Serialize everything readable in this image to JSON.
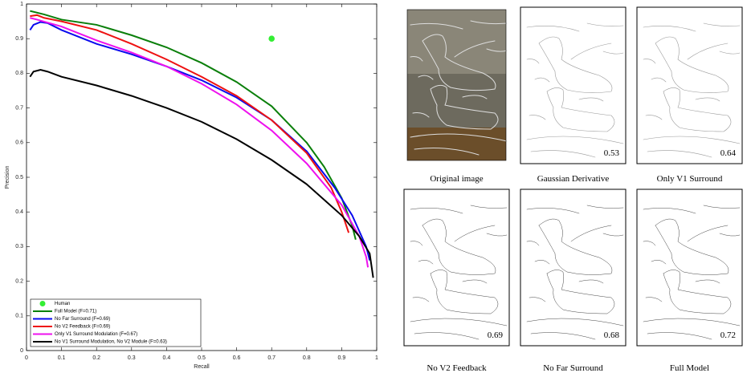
{
  "chart_data": {
    "type": "line",
    "xlabel": "Recall",
    "ylabel": "Precision",
    "xlim": [
      0,
      1
    ],
    "ylim": [
      0,
      1
    ],
    "xticks": [
      0,
      0.1,
      0.2,
      0.3,
      0.4,
      0.5,
      0.6,
      0.7,
      0.8,
      0.9,
      1
    ],
    "yticks": [
      0,
      0.1,
      0.2,
      0.3,
      0.4,
      0.5,
      0.6,
      0.7,
      0.8,
      0.9,
      1
    ],
    "legend": "lower left",
    "series": [
      {
        "name": "Human",
        "color": "#33ee33",
        "style": "marker",
        "x": [
          0.7
        ],
        "values": [
          0.9
        ]
      },
      {
        "name": "Full Model (F=0.71)",
        "color": "#0a7f0a",
        "style": "line",
        "x": [
          0.01,
          0.05,
          0.1,
          0.2,
          0.3,
          0.4,
          0.5,
          0.6,
          0.7,
          0.8,
          0.85,
          0.9,
          0.93,
          0.94
        ],
        "values": [
          0.98,
          0.97,
          0.955,
          0.94,
          0.91,
          0.875,
          0.83,
          0.775,
          0.705,
          0.6,
          0.53,
          0.44,
          0.36,
          0.32
        ]
      },
      {
        "name": "No Far Surround (F=0.69)",
        "color": "#0a0aee",
        "style": "line",
        "x": [
          0.01,
          0.02,
          0.04,
          0.06,
          0.1,
          0.2,
          0.3,
          0.4,
          0.5,
          0.6,
          0.7,
          0.8,
          0.88,
          0.93,
          0.97,
          0.98
        ],
        "values": [
          0.925,
          0.94,
          0.948,
          0.945,
          0.925,
          0.885,
          0.855,
          0.82,
          0.78,
          0.73,
          0.665,
          0.575,
          0.47,
          0.39,
          0.3,
          0.26
        ]
      },
      {
        "name": "No V2 Feedback (F=0.69)",
        "color": "#ee1111",
        "style": "line",
        "x": [
          0.01,
          0.03,
          0.05,
          0.1,
          0.2,
          0.3,
          0.4,
          0.5,
          0.6,
          0.7,
          0.8,
          0.87,
          0.9,
          0.92
        ],
        "values": [
          0.965,
          0.968,
          0.96,
          0.95,
          0.925,
          0.885,
          0.84,
          0.79,
          0.735,
          0.665,
          0.57,
          0.47,
          0.4,
          0.34
        ]
      },
      {
        "name": "Only V1 Surround Modulation (F=0.67)",
        "color": "#ee11ee",
        "style": "line",
        "x": [
          0.01,
          0.03,
          0.1,
          0.2,
          0.3,
          0.4,
          0.5,
          0.6,
          0.7,
          0.8,
          0.9,
          0.95,
          0.97,
          0.975
        ],
        "values": [
          0.96,
          0.955,
          0.935,
          0.895,
          0.86,
          0.82,
          0.77,
          0.71,
          0.635,
          0.54,
          0.42,
          0.33,
          0.27,
          0.24
        ]
      },
      {
        "name": "No V1 Surround Modulation, No V2 Module (F=0.63)",
        "color": "#000000",
        "style": "line",
        "x": [
          0.01,
          0.02,
          0.04,
          0.06,
          0.1,
          0.2,
          0.3,
          0.4,
          0.5,
          0.6,
          0.7,
          0.8,
          0.9,
          0.95,
          0.98,
          0.99
        ],
        "values": [
          0.79,
          0.805,
          0.81,
          0.805,
          0.79,
          0.765,
          0.735,
          0.7,
          0.66,
          0.61,
          0.55,
          0.48,
          0.39,
          0.33,
          0.28,
          0.21
        ]
      }
    ]
  },
  "panels": [
    {
      "caption": "Original image"
    },
    {
      "caption": "Gaussian Derivative",
      "score": 0.53
    },
    {
      "caption": "Only V1 Surround",
      "score": 0.64
    },
    {
      "caption": "No V2 Feedback",
      "score": 0.69
    },
    {
      "caption": "No Far Surround",
      "score": 0.68
    },
    {
      "caption": "Full Model",
      "score": 0.72
    }
  ]
}
